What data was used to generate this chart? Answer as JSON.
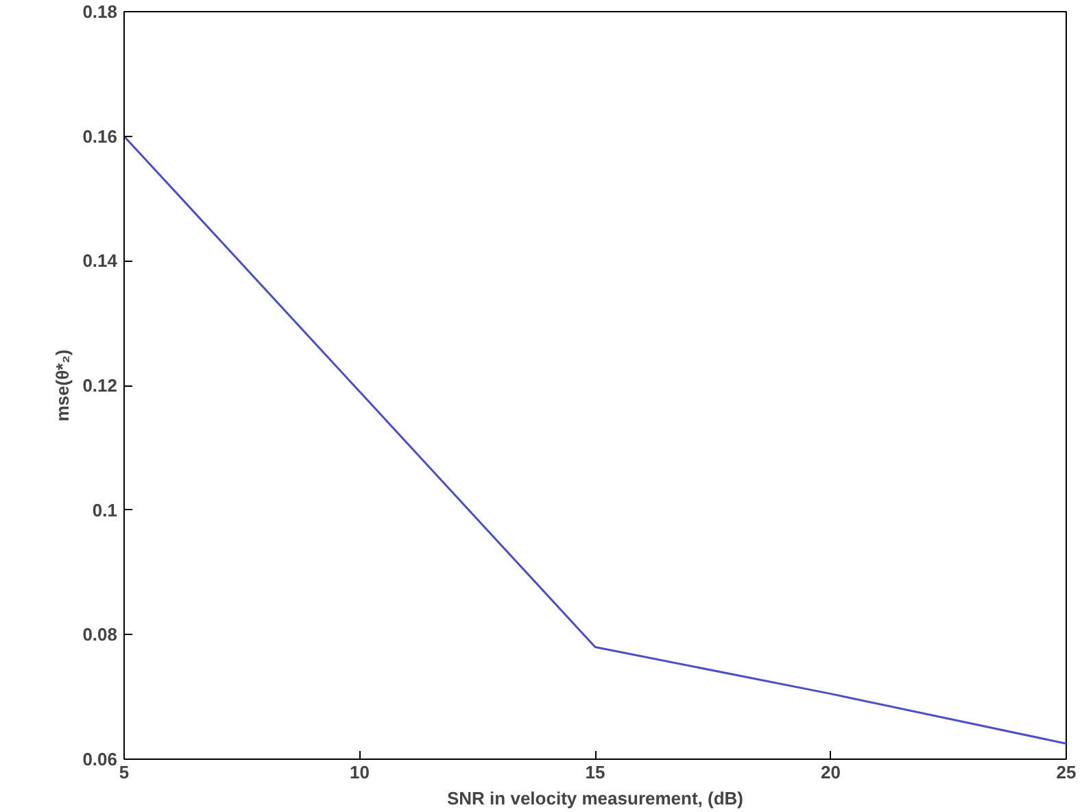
{
  "chart_data": {
    "type": "line",
    "xlabel": "SNR in velocity measurement, (dB)",
    "ylabel": "mse(θ*₂)",
    "x": [
      5,
      10,
      15,
      20,
      25
    ],
    "series": [
      {
        "color": "#4a4fc8",
        "values": [
          0.16,
          0.119,
          0.078,
          0.0705,
          0.0625
        ]
      }
    ],
    "xlim": [
      5,
      25
    ],
    "xticks": [
      5,
      10,
      15,
      20,
      25
    ],
    "ylim": [
      0.06,
      0.18
    ],
    "yticks": [
      0.06,
      {
        "value": 0.08,
        "label": "0.08"
      },
      0.1,
      0.12,
      0.14,
      0.16,
      0.18
    ],
    "grid": false,
    "marker": "none",
    "line_style": "solid"
  }
}
